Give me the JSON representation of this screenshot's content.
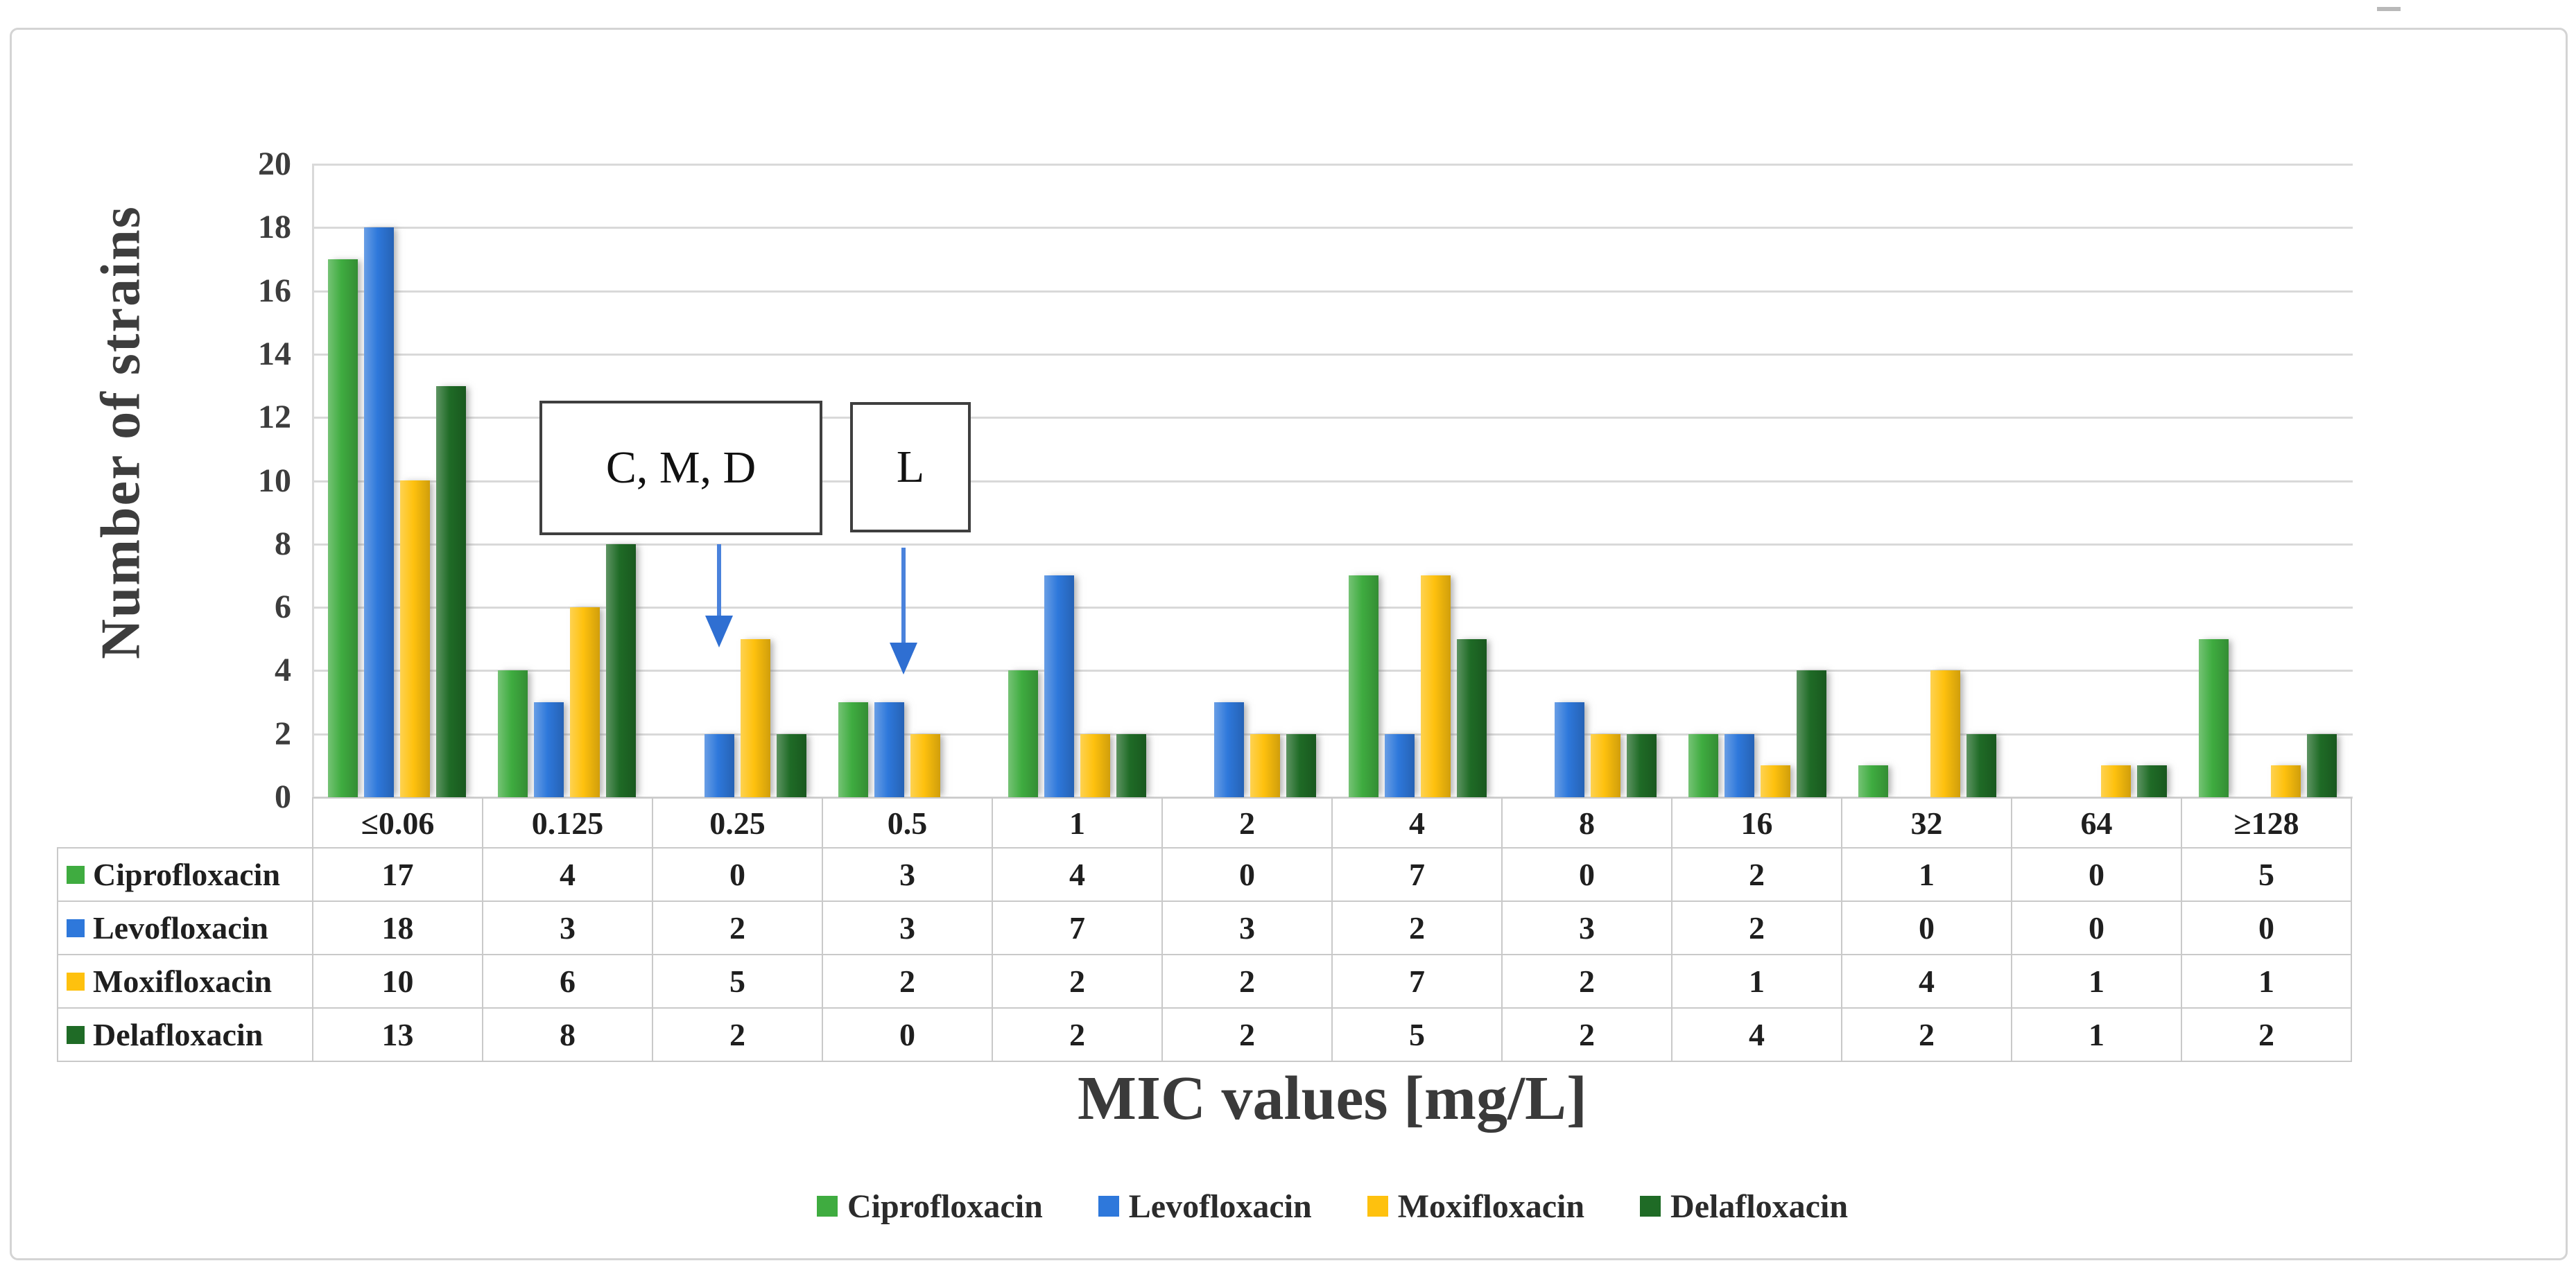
{
  "chart_data": {
    "type": "bar",
    "title": "",
    "xlabel": "MIC values [mg/L]",
    "ylabel": "Number of strains",
    "categories": [
      "≤0.06",
      "0.125",
      "0.25",
      "0.5",
      "1",
      "2",
      "4",
      "8",
      "16",
      "32",
      "64",
      "≥128"
    ],
    "series": [
      {
        "name": "Ciprofloxacin",
        "color": "#3fac40",
        "values": [
          17,
          4,
          0,
          3,
          4,
          0,
          7,
          0,
          2,
          1,
          0,
          5
        ]
      },
      {
        "name": "Levofloxacin",
        "color": "#2e78db",
        "values": [
          18,
          3,
          2,
          3,
          7,
          3,
          2,
          3,
          2,
          0,
          0,
          0
        ]
      },
      {
        "name": "Moxifloxacin",
        "color": "#fec10e",
        "values": [
          10,
          6,
          5,
          2,
          2,
          2,
          7,
          2,
          1,
          4,
          1,
          1
        ]
      },
      {
        "name": "Delafloxacin",
        "color": "#1f6b26",
        "values": [
          13,
          8,
          2,
          0,
          2,
          2,
          5,
          2,
          4,
          2,
          1,
          2
        ]
      }
    ],
    "ylim": [
      0,
      20
    ],
    "yticks": [
      0,
      2,
      4,
      6,
      8,
      10,
      12,
      14,
      16,
      18,
      20
    ],
    "grid": true,
    "legend_position": "bottom",
    "data_table_shown": true,
    "annotations": [
      {
        "label": "C, M, D",
        "arrow_color": "#3d76d6",
        "points_to_category": "0.25"
      },
      {
        "label": "L",
        "arrow_color": "#3d76d6",
        "points_to_category": "0.5"
      }
    ]
  }
}
